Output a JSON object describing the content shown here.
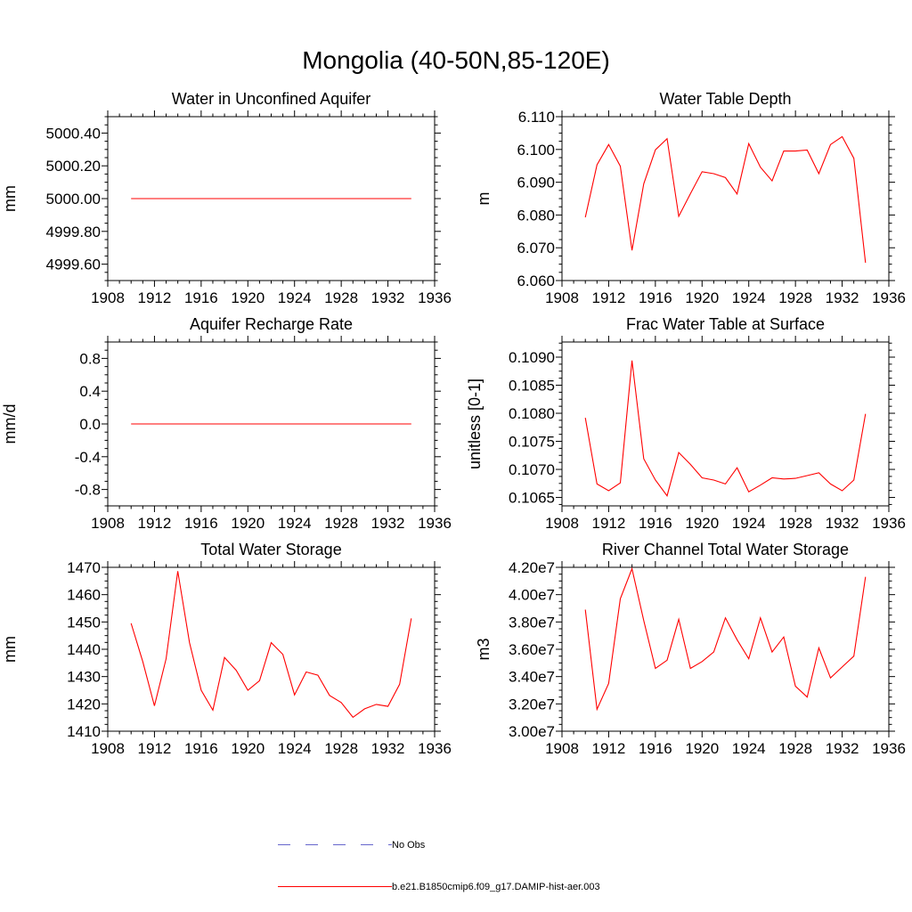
{
  "title": "Mongolia (40-50N,85-120E)",
  "legend": [
    {
      "label": "No Obs",
      "color": "#6666cc",
      "dash": true
    },
    {
      "label": "b.e21.B1850cmip6.f09_g17.DAMIP-hist-aer.003",
      "color": "#ff0000",
      "dash": false
    }
  ],
  "colors": {
    "series": "#ff0000"
  },
  "chart_data": [
    {
      "type": "line",
      "title": "Water in Unconfined Aquifer",
      "ylabel": "mm",
      "xlim": [
        1908,
        1936
      ],
      "ylim": [
        4999.5,
        5000.5
      ],
      "xticks": [
        "1908",
        "1912",
        "1916",
        "1920",
        "1924",
        "1928",
        "1932",
        "1936"
      ],
      "yticks": [
        4999.6,
        4999.8,
        5000.0,
        5000.2,
        5000.4
      ],
      "ytick_labels": [
        "4999.60",
        "4999.80",
        "5000.00",
        "5000.20",
        "5000.40"
      ],
      "x": [
        1910,
        1911,
        1912,
        1913,
        1914,
        1915,
        1916,
        1917,
        1918,
        1919,
        1920,
        1921,
        1922,
        1923,
        1924,
        1925,
        1926,
        1927,
        1928,
        1929,
        1930,
        1931,
        1932,
        1933,
        1934
      ],
      "series": [
        {
          "values": [
            5000,
            5000,
            5000,
            5000,
            5000,
            5000,
            5000,
            5000,
            5000,
            5000,
            5000,
            5000,
            5000,
            5000,
            5000,
            5000,
            5000,
            5000,
            5000,
            5000,
            5000,
            5000,
            5000,
            5000,
            5000
          ]
        }
      ]
    },
    {
      "type": "line",
      "title": "Water Table Depth",
      "ylabel": "m",
      "xlim": [
        1908,
        1936
      ],
      "ylim": [
        6.06,
        6.11
      ],
      "xticks": [
        "1908",
        "1912",
        "1916",
        "1920",
        "1924",
        "1928",
        "1932",
        "1936"
      ],
      "yticks": [
        6.06,
        6.07,
        6.08,
        6.09,
        6.1,
        6.11
      ],
      "ytick_labels": [
        "6.060",
        "6.070",
        "6.080",
        "6.090",
        "6.100",
        "6.110"
      ],
      "x": [
        1910,
        1911,
        1912,
        1913,
        1914,
        1915,
        1916,
        1917,
        1918,
        1919,
        1920,
        1921,
        1922,
        1923,
        1924,
        1925,
        1926,
        1927,
        1928,
        1929,
        1930,
        1931,
        1932,
        1933,
        1934
      ],
      "series": [
        {
          "values": [
            6.0793,
            6.0953,
            6.1015,
            6.0949,
            6.0692,
            6.0895,
            6.0999,
            6.1033,
            6.0796,
            6.0865,
            6.0932,
            6.0926,
            6.0914,
            6.0864,
            6.1018,
            6.0946,
            6.0904,
            6.0995,
            6.0995,
            6.0998,
            6.0926,
            6.1015,
            6.1039,
            6.0973,
            6.0654
          ]
        }
      ]
    },
    {
      "type": "line",
      "title": "Aquifer Recharge Rate",
      "ylabel": "mm/d",
      "xlim": [
        1908,
        1936
      ],
      "ylim": [
        -1.0,
        1.0
      ],
      "xticks": [
        "1908",
        "1912",
        "1916",
        "1920",
        "1924",
        "1928",
        "1932",
        "1936"
      ],
      "yticks": [
        -0.8,
        -0.4,
        0.0,
        0.4,
        0.8
      ],
      "ytick_labels": [
        "-0.8",
        "-0.4",
        "0.0",
        "0.4",
        "0.8"
      ],
      "x": [
        1910,
        1911,
        1912,
        1913,
        1914,
        1915,
        1916,
        1917,
        1918,
        1919,
        1920,
        1921,
        1922,
        1923,
        1924,
        1925,
        1926,
        1927,
        1928,
        1929,
        1930,
        1931,
        1932,
        1933,
        1934
      ],
      "series": [
        {
          "values": [
            0,
            0,
            0,
            0,
            0,
            0,
            0,
            0,
            0,
            0,
            0,
            0,
            0,
            0,
            0,
            0,
            0,
            0,
            0,
            0,
            0,
            0,
            0,
            0,
            0
          ]
        }
      ]
    },
    {
      "type": "line",
      "title": "Frac Water Table at Surface",
      "ylabel": "unitless [0-1]",
      "xlim": [
        1908,
        1936
      ],
      "ylim": [
        0.10635,
        0.10927
      ],
      "xticks": [
        "1908",
        "1912",
        "1916",
        "1920",
        "1924",
        "1928",
        "1932",
        "1936"
      ],
      "yticks": [
        0.1065,
        0.107,
        0.1075,
        0.108,
        0.1085,
        0.109
      ],
      "ytick_labels": [
        "0.1065",
        "0.1070",
        "0.1075",
        "0.1080",
        "0.1085",
        "0.1090"
      ],
      "x": [
        1910,
        1911,
        1912,
        1913,
        1914,
        1915,
        1916,
        1917,
        1918,
        1919,
        1920,
        1921,
        1922,
        1923,
        1924,
        1925,
        1926,
        1927,
        1928,
        1929,
        1930,
        1931,
        1932,
        1933,
        1934
      ],
      "series": [
        {
          "values": [
            0.10792,
            0.10674,
            0.10662,
            0.10676,
            0.10894,
            0.10719,
            0.10681,
            0.10653,
            0.1073,
            0.10709,
            0.10685,
            0.10681,
            0.10674,
            0.10703,
            0.1066,
            0.10672,
            0.10685,
            0.10683,
            0.10684,
            0.10689,
            0.10694,
            0.10674,
            0.10662,
            0.10681,
            0.10799
          ]
        }
      ]
    },
    {
      "type": "line",
      "title": "Total Water Storage",
      "ylabel": "mm",
      "xlim": [
        1908,
        1936
      ],
      "ylim": [
        1410,
        1470
      ],
      "xticks": [
        "1908",
        "1912",
        "1916",
        "1920",
        "1924",
        "1928",
        "1932",
        "1936"
      ],
      "yticks": [
        1410,
        1420,
        1430,
        1440,
        1450,
        1460,
        1470
      ],
      "ytick_labels": [
        "1410",
        "1420",
        "1430",
        "1440",
        "1450",
        "1460",
        "1470"
      ],
      "x": [
        1910,
        1911,
        1912,
        1913,
        1914,
        1915,
        1916,
        1917,
        1918,
        1919,
        1920,
        1921,
        1922,
        1923,
        1924,
        1925,
        1926,
        1927,
        1928,
        1929,
        1930,
        1931,
        1932,
        1933,
        1934
      ],
      "series": [
        {
          "values": [
            1449.5,
            1435.5,
            1419.3,
            1436.5,
            1468.6,
            1442.4,
            1425.0,
            1417.7,
            1437.0,
            1432.3,
            1425.0,
            1428.5,
            1442.4,
            1438.1,
            1423.3,
            1431.7,
            1430.5,
            1423.1,
            1420.5,
            1415.1,
            1418.2,
            1419.8,
            1419.1,
            1427.2,
            1451.3
          ]
        }
      ]
    },
    {
      "type": "line",
      "title": "River Channel Total Water Storage",
      "ylabel": "m3",
      "xlim": [
        1908,
        1936
      ],
      "ylim": [
        30000000,
        42000000
      ],
      "xticks": [
        "1908",
        "1912",
        "1916",
        "1920",
        "1924",
        "1928",
        "1932",
        "1936"
      ],
      "yticks": [
        30000000,
        32000000,
        34000000,
        36000000,
        38000000,
        40000000,
        42000000
      ],
      "ytick_labels": [
        "3.00e7",
        "3.20e7",
        "3.40e7",
        "3.60e7",
        "3.80e7",
        "4.00e7",
        "4.20e7"
      ],
      "x": [
        1910,
        1911,
        1912,
        1913,
        1914,
        1915,
        1916,
        1917,
        1918,
        1919,
        1920,
        1921,
        1922,
        1923,
        1924,
        1925,
        1926,
        1927,
        1928,
        1929,
        1930,
        1931,
        1932,
        1933,
        1934
      ],
      "series": [
        {
          "values": [
            38900000,
            31600000,
            33500000,
            39700000,
            41900000,
            38100000,
            34600000,
            35200000,
            38200000,
            34600000,
            35100000,
            35800000,
            38300000,
            36700000,
            35300000,
            38300000,
            35800000,
            36900000,
            33300000,
            32500000,
            36100000,
            33900000,
            34700000,
            35500000,
            41300000
          ]
        }
      ]
    }
  ]
}
